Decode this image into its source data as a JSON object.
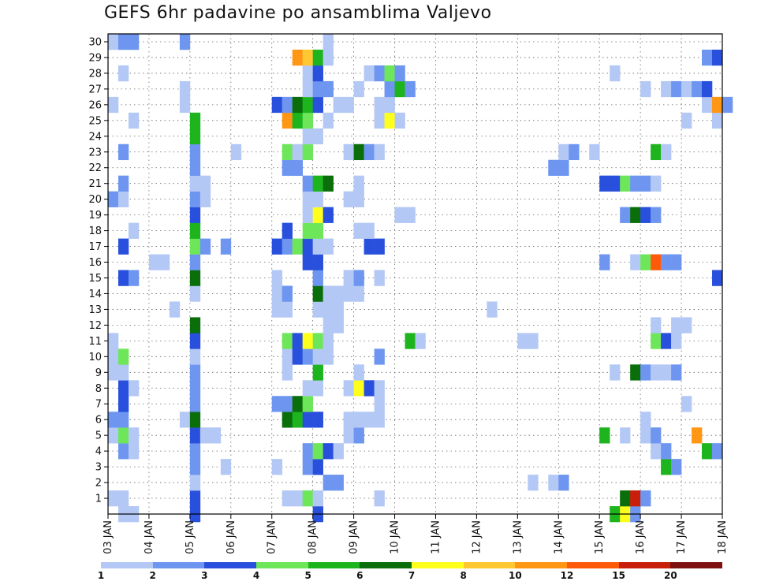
{
  "title": "GEFS 6hr padavine po ansamblima Valjevo",
  "legend": {
    "labels": [
      "1",
      "2",
      "3",
      "4",
      "5",
      "6",
      "7",
      "8",
      "10",
      "12",
      "15",
      "20"
    ],
    "colors": [
      "#b4c8f5",
      "#6e96f0",
      "#2850dc",
      "#6ee65a",
      "#1eb41e",
      "#0a6e0a",
      "#ffff1e",
      "#ffc832",
      "#ff9614",
      "#ff5a0a",
      "#c81e0a",
      "#7d0f0f"
    ]
  },
  "chart_data": {
    "type": "heatmap",
    "title": "GEFS 6hr padavine po ansamblima Valjevo",
    "x_tick_labels": [
      "03 JAN",
      "04 JAN",
      "05 JAN",
      "06 JAN",
      "07 JAN",
      "08 JAN",
      "09 JAN",
      "10 JAN",
      "11 JAN",
      "12 JAN",
      "13 JAN",
      "14 JAN",
      "15 JAN",
      "16 JAN",
      "17 JAN",
      "18 JAN"
    ],
    "y_tick_labels": [
      "1",
      "2",
      "3",
      "4",
      "5",
      "6",
      "7",
      "8",
      "9",
      "10",
      "11",
      "12",
      "13",
      "14",
      "15",
      "16",
      "17",
      "18",
      "19",
      "20",
      "21",
      "22",
      "23",
      "24",
      "25",
      "26",
      "27",
      "28",
      "29",
      "30"
    ],
    "x_range": [
      "03 JAN",
      "18 JAN"
    ],
    "y_range": [
      0,
      30
    ],
    "time_steps_per_day": 4,
    "grid": true,
    "legend_position": "bottom",
    "color_bins": [
      "1",
      "2",
      "3",
      "4",
      "5",
      "6",
      "7",
      "8",
      "10",
      "12",
      "15",
      "20"
    ],
    "cell_value_encoding": "color bin index (1 = '1', 2 = '2', ... 12 = '20'); value is the bin lower bound label",
    "rows": {
      "30": [
        [
          0,
          1
        ],
        [
          1,
          2
        ],
        [
          2,
          2
        ],
        [
          7,
          2
        ],
        [
          21,
          1
        ]
      ],
      "29": [
        [
          18,
          9
        ],
        [
          19,
          8
        ],
        [
          20,
          5
        ],
        [
          21,
          1
        ],
        [
          58,
          2
        ],
        [
          59,
          3
        ]
      ],
      "28": [
        [
          1,
          1
        ],
        [
          19,
          1
        ],
        [
          20,
          3
        ],
        [
          25,
          1
        ],
        [
          26,
          2
        ],
        [
          27,
          4
        ],
        [
          28,
          2
        ],
        [
          49,
          1
        ]
      ],
      "27": [
        [
          7,
          1
        ],
        [
          19,
          1
        ],
        [
          20,
          2
        ],
        [
          21,
          2
        ],
        [
          24,
          1
        ],
        [
          27,
          2
        ],
        [
          28,
          5
        ],
        [
          29,
          2
        ],
        [
          52,
          1
        ],
        [
          54,
          1
        ],
        [
          55,
          2
        ],
        [
          56,
          1
        ],
        [
          57,
          2
        ],
        [
          58,
          3
        ]
      ],
      "26": [
        [
          0,
          1
        ],
        [
          7,
          1
        ],
        [
          16,
          3
        ],
        [
          17,
          2
        ],
        [
          18,
          6
        ],
        [
          19,
          5
        ],
        [
          20,
          3
        ],
        [
          22,
          1
        ],
        [
          23,
          1
        ],
        [
          26,
          1
        ],
        [
          27,
          1
        ],
        [
          58,
          1
        ],
        [
          59,
          9
        ],
        [
          60,
          2
        ]
      ],
      "25": [
        [
          2,
          1
        ],
        [
          8,
          5
        ],
        [
          17,
          9
        ],
        [
          18,
          5
        ],
        [
          19,
          4
        ],
        [
          21,
          1
        ],
        [
          26,
          1
        ],
        [
          27,
          7
        ],
        [
          28,
          1
        ],
        [
          56,
          1
        ],
        [
          59,
          1
        ]
      ],
      "24": [
        [
          8,
          5
        ],
        [
          19,
          1
        ],
        [
          20,
          1
        ]
      ],
      "23": [
        [
          1,
          2
        ],
        [
          8,
          2
        ],
        [
          12,
          1
        ],
        [
          17,
          4
        ],
        [
          18,
          1
        ],
        [
          19,
          4
        ],
        [
          23,
          1
        ],
        [
          24,
          6
        ],
        [
          25,
          2
        ],
        [
          26,
          1
        ],
        [
          44,
          1
        ],
        [
          45,
          2
        ],
        [
          47,
          1
        ],
        [
          53,
          5
        ],
        [
          54,
          1
        ]
      ],
      "22": [
        [
          8,
          2
        ],
        [
          17,
          2
        ],
        [
          18,
          2
        ],
        [
          43,
          2
        ],
        [
          44,
          2
        ]
      ],
      "21": [
        [
          1,
          2
        ],
        [
          8,
          1
        ],
        [
          9,
          1
        ],
        [
          19,
          2
        ],
        [
          20,
          5
        ],
        [
          21,
          6
        ],
        [
          24,
          1
        ],
        [
          48,
          3
        ],
        [
          49,
          3
        ],
        [
          50,
          4
        ],
        [
          51,
          2
        ],
        [
          52,
          2
        ],
        [
          53,
          1
        ]
      ],
      "20": [
        [
          0,
          2
        ],
        [
          1,
          1
        ],
        [
          8,
          2
        ],
        [
          9,
          1
        ],
        [
          19,
          1
        ],
        [
          20,
          1
        ],
        [
          23,
          1
        ],
        [
          24,
          1
        ]
      ],
      "19": [
        [
          8,
          3
        ],
        [
          19,
          1
        ],
        [
          20,
          7
        ],
        [
          21,
          3
        ],
        [
          28,
          1
        ],
        [
          29,
          1
        ],
        [
          50,
          2
        ],
        [
          51,
          6
        ],
        [
          52,
          3
        ],
        [
          53,
          2
        ]
      ],
      "18": [
        [
          2,
          1
        ],
        [
          8,
          5
        ],
        [
          17,
          3
        ],
        [
          19,
          4
        ],
        [
          20,
          4
        ],
        [
          24,
          1
        ],
        [
          25,
          1
        ]
      ],
      "17": [
        [
          1,
          3
        ],
        [
          8,
          4
        ],
        [
          9,
          2
        ],
        [
          11,
          2
        ],
        [
          16,
          3
        ],
        [
          17,
          2
        ],
        [
          18,
          4
        ],
        [
          19,
          3
        ],
        [
          20,
          1
        ],
        [
          21,
          1
        ],
        [
          25,
          3
        ],
        [
          26,
          3
        ]
      ],
      "16": [
        [
          4,
          1
        ],
        [
          5,
          1
        ],
        [
          8,
          2
        ],
        [
          19,
          3
        ],
        [
          20,
          3
        ],
        [
          48,
          2
        ],
        [
          51,
          1
        ],
        [
          52,
          4
        ],
        [
          53,
          10
        ],
        [
          54,
          2
        ],
        [
          55,
          2
        ]
      ],
      "15": [
        [
          1,
          3
        ],
        [
          2,
          2
        ],
        [
          8,
          6
        ],
        [
          16,
          1
        ],
        [
          20,
          2
        ],
        [
          23,
          1
        ],
        [
          24,
          2
        ],
        [
          26,
          1
        ],
        [
          59,
          3
        ]
      ],
      "14": [
        [
          8,
          1
        ],
        [
          16,
          1
        ],
        [
          17,
          2
        ],
        [
          20,
          6
        ],
        [
          21,
          1
        ],
        [
          22,
          1
        ],
        [
          23,
          1
        ],
        [
          24,
          1
        ]
      ],
      "13": [
        [
          6,
          1
        ],
        [
          16,
          1
        ],
        [
          17,
          1
        ],
        [
          20,
          1
        ],
        [
          21,
          1
        ],
        [
          22,
          1
        ],
        [
          37,
          1
        ]
      ],
      "12": [
        [
          8,
          6
        ],
        [
          21,
          1
        ],
        [
          22,
          1
        ],
        [
          53,
          1
        ],
        [
          55,
          1
        ],
        [
          56,
          1
        ]
      ],
      "11": [
        [
          0,
          1
        ],
        [
          8,
          3
        ],
        [
          17,
          4
        ],
        [
          18,
          3
        ],
        [
          19,
          7
        ],
        [
          20,
          4
        ],
        [
          21,
          1
        ],
        [
          29,
          5
        ],
        [
          30,
          1
        ],
        [
          40,
          1
        ],
        [
          41,
          1
        ],
        [
          53,
          4
        ],
        [
          54,
          3
        ],
        [
          55,
          1
        ]
      ],
      "10": [
        [
          0,
          1
        ],
        [
          1,
          4
        ],
        [
          8,
          1
        ],
        [
          17,
          1
        ],
        [
          18,
          3
        ],
        [
          19,
          2
        ],
        [
          20,
          1
        ],
        [
          21,
          1
        ],
        [
          26,
          2
        ]
      ],
      "9": [
        [
          0,
          1
        ],
        [
          1,
          1
        ],
        [
          8,
          2
        ],
        [
          17,
          1
        ],
        [
          20,
          5
        ],
        [
          24,
          1
        ],
        [
          49,
          1
        ],
        [
          51,
          6
        ],
        [
          52,
          2
        ],
        [
          53,
          1
        ],
        [
          54,
          1
        ],
        [
          55,
          2
        ]
      ],
      "8": [
        [
          1,
          3
        ],
        [
          2,
          1
        ],
        [
          8,
          2
        ],
        [
          19,
          1
        ],
        [
          20,
          1
        ],
        [
          23,
          1
        ],
        [
          24,
          7
        ],
        [
          25,
          3
        ],
        [
          26,
          1
        ]
      ],
      "7": [
        [
          1,
          3
        ],
        [
          8,
          2
        ],
        [
          16,
          2
        ],
        [
          17,
          2
        ],
        [
          18,
          6
        ],
        [
          19,
          4
        ],
        [
          26,
          1
        ],
        [
          56,
          1
        ]
      ],
      "6": [
        [
          0,
          2
        ],
        [
          1,
          2
        ],
        [
          7,
          1
        ],
        [
          8,
          6
        ],
        [
          17,
          6
        ],
        [
          18,
          5
        ],
        [
          19,
          3
        ],
        [
          20,
          3
        ],
        [
          23,
          1
        ],
        [
          24,
          1
        ],
        [
          25,
          1
        ],
        [
          26,
          1
        ],
        [
          52,
          1
        ]
      ],
      "5": [
        [
          0,
          1
        ],
        [
          1,
          4
        ],
        [
          2,
          1
        ],
        [
          8,
          3
        ],
        [
          9,
          1
        ],
        [
          10,
          1
        ],
        [
          23,
          1
        ],
        [
          24,
          2
        ],
        [
          48,
          5
        ],
        [
          50,
          1
        ],
        [
          52,
          1
        ],
        [
          53,
          2
        ],
        [
          57,
          9
        ]
      ],
      "4": [
        [
          1,
          2
        ],
        [
          2,
          1
        ],
        [
          8,
          2
        ],
        [
          19,
          2
        ],
        [
          20,
          4
        ],
        [
          21,
          3
        ],
        [
          22,
          1
        ],
        [
          53,
          1
        ],
        [
          54,
          2
        ],
        [
          58,
          5
        ],
        [
          59,
          2
        ]
      ],
      "3": [
        [
          8,
          2
        ],
        [
          11,
          1
        ],
        [
          16,
          1
        ],
        [
          19,
          2
        ],
        [
          20,
          3
        ],
        [
          54,
          5
        ],
        [
          55,
          2
        ]
      ],
      "2": [
        [
          8,
          1
        ],
        [
          21,
          2
        ],
        [
          22,
          2
        ],
        [
          41,
          1
        ],
        [
          43,
          1
        ],
        [
          44,
          2
        ]
      ],
      "1": [
        [
          0,
          1
        ],
        [
          1,
          1
        ],
        [
          8,
          3
        ],
        [
          17,
          1
        ],
        [
          18,
          1
        ],
        [
          19,
          4
        ],
        [
          20,
          1
        ],
        [
          26,
          1
        ],
        [
          50,
          6
        ],
        [
          51,
          11
        ],
        [
          52,
          2
        ]
      ],
      "0": [
        [
          1,
          1
        ],
        [
          2,
          1
        ],
        [
          8,
          3
        ],
        [
          20,
          3
        ],
        [
          49,
          5
        ],
        [
          50,
          7
        ],
        [
          51,
          2
        ]
      ]
    }
  }
}
